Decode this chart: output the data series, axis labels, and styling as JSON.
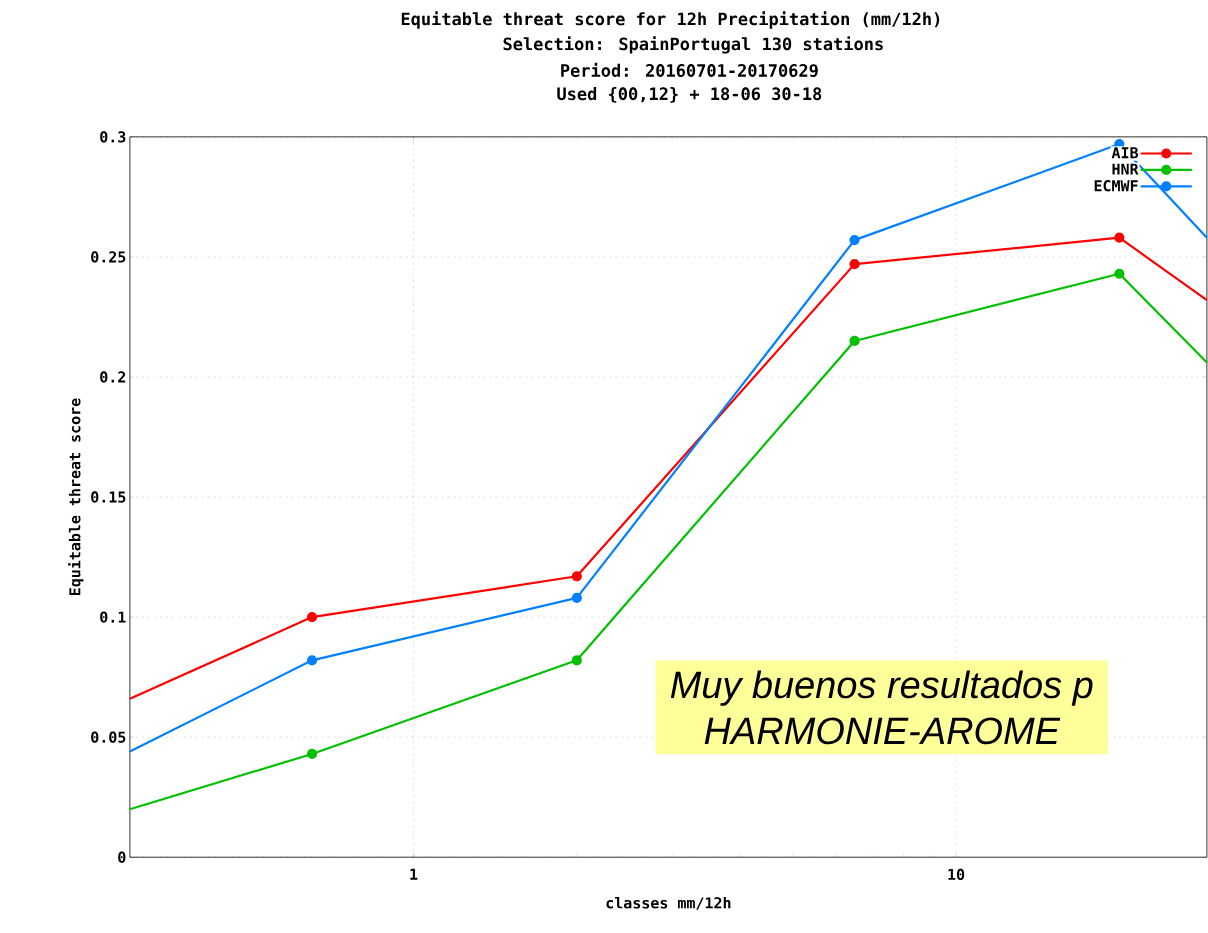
{
  "chart_data": {
    "type": "line",
    "title": "Equitable threat score  for 12h Precipitation (mm/12h)",
    "subtitle": "Selection: SpainPortugal    130 stations",
    "annotations": [
      "Period: 20160701-20170629",
      "Used {00,12} + 18-06 30-18",
      "Muy buenos resultados p",
      "HARMONIE-AROME"
    ],
    "xlabel": "classes mm/12h",
    "ylabel": "Equitable threat score",
    "log": "x",
    "xlim": [
      0.3,
      29
    ],
    "xticks": [
      1,
      10
    ],
    "ylim": [
      0,
      0.3
    ],
    "yticks": [
      0,
      0.05,
      0.1,
      0.15,
      0.2,
      0.25,
      0.3
    ],
    "grid": true,
    "legend": "top right",
    "marker": "circle",
    "line_style": "solid",
    "x": [
      0.3,
      0.65,
      2,
      6.5,
      20,
      29
    ],
    "series": [
      {
        "name": "AIB",
        "color": "#ff0000",
        "values": [
          0.066,
          0.1,
          0.117,
          0.247,
          0.258,
          0.232
        ]
      },
      {
        "name": "HNR",
        "color": "#00c000",
        "values": [
          0.02,
          0.043,
          0.082,
          0.215,
          0.243,
          0.206
        ]
      },
      {
        "name": "ECMWF",
        "color": "#0080ff",
        "values": [
          0.044,
          0.082,
          0.108,
          0.257,
          0.297,
          0.258
        ]
      }
    ]
  }
}
